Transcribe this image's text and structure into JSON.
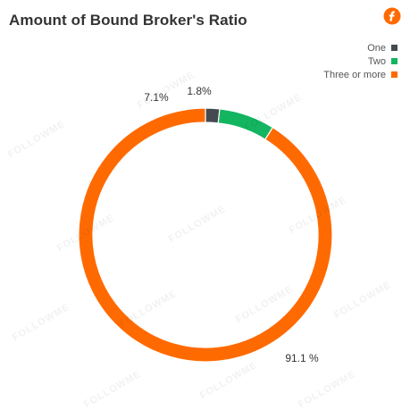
{
  "title": "Amount of Bound Broker's Ratio",
  "watermark": "FOLLOWME",
  "colors": {
    "one": "#454a50",
    "two": "#13b560",
    "three": "#ff6a00"
  },
  "chart_data": {
    "type": "pie",
    "donut": true,
    "legend_position": "top-right",
    "slices": [
      {
        "label": "One",
        "value": 1.8,
        "display": "1.8%",
        "color": "#454a50"
      },
      {
        "label": "Two",
        "value": 7.1,
        "display": "7.1%",
        "color": "#13b560"
      },
      {
        "label": "Three or more",
        "value": 91.1,
        "display": "91.1 %",
        "color": "#ff6a00"
      }
    ]
  }
}
